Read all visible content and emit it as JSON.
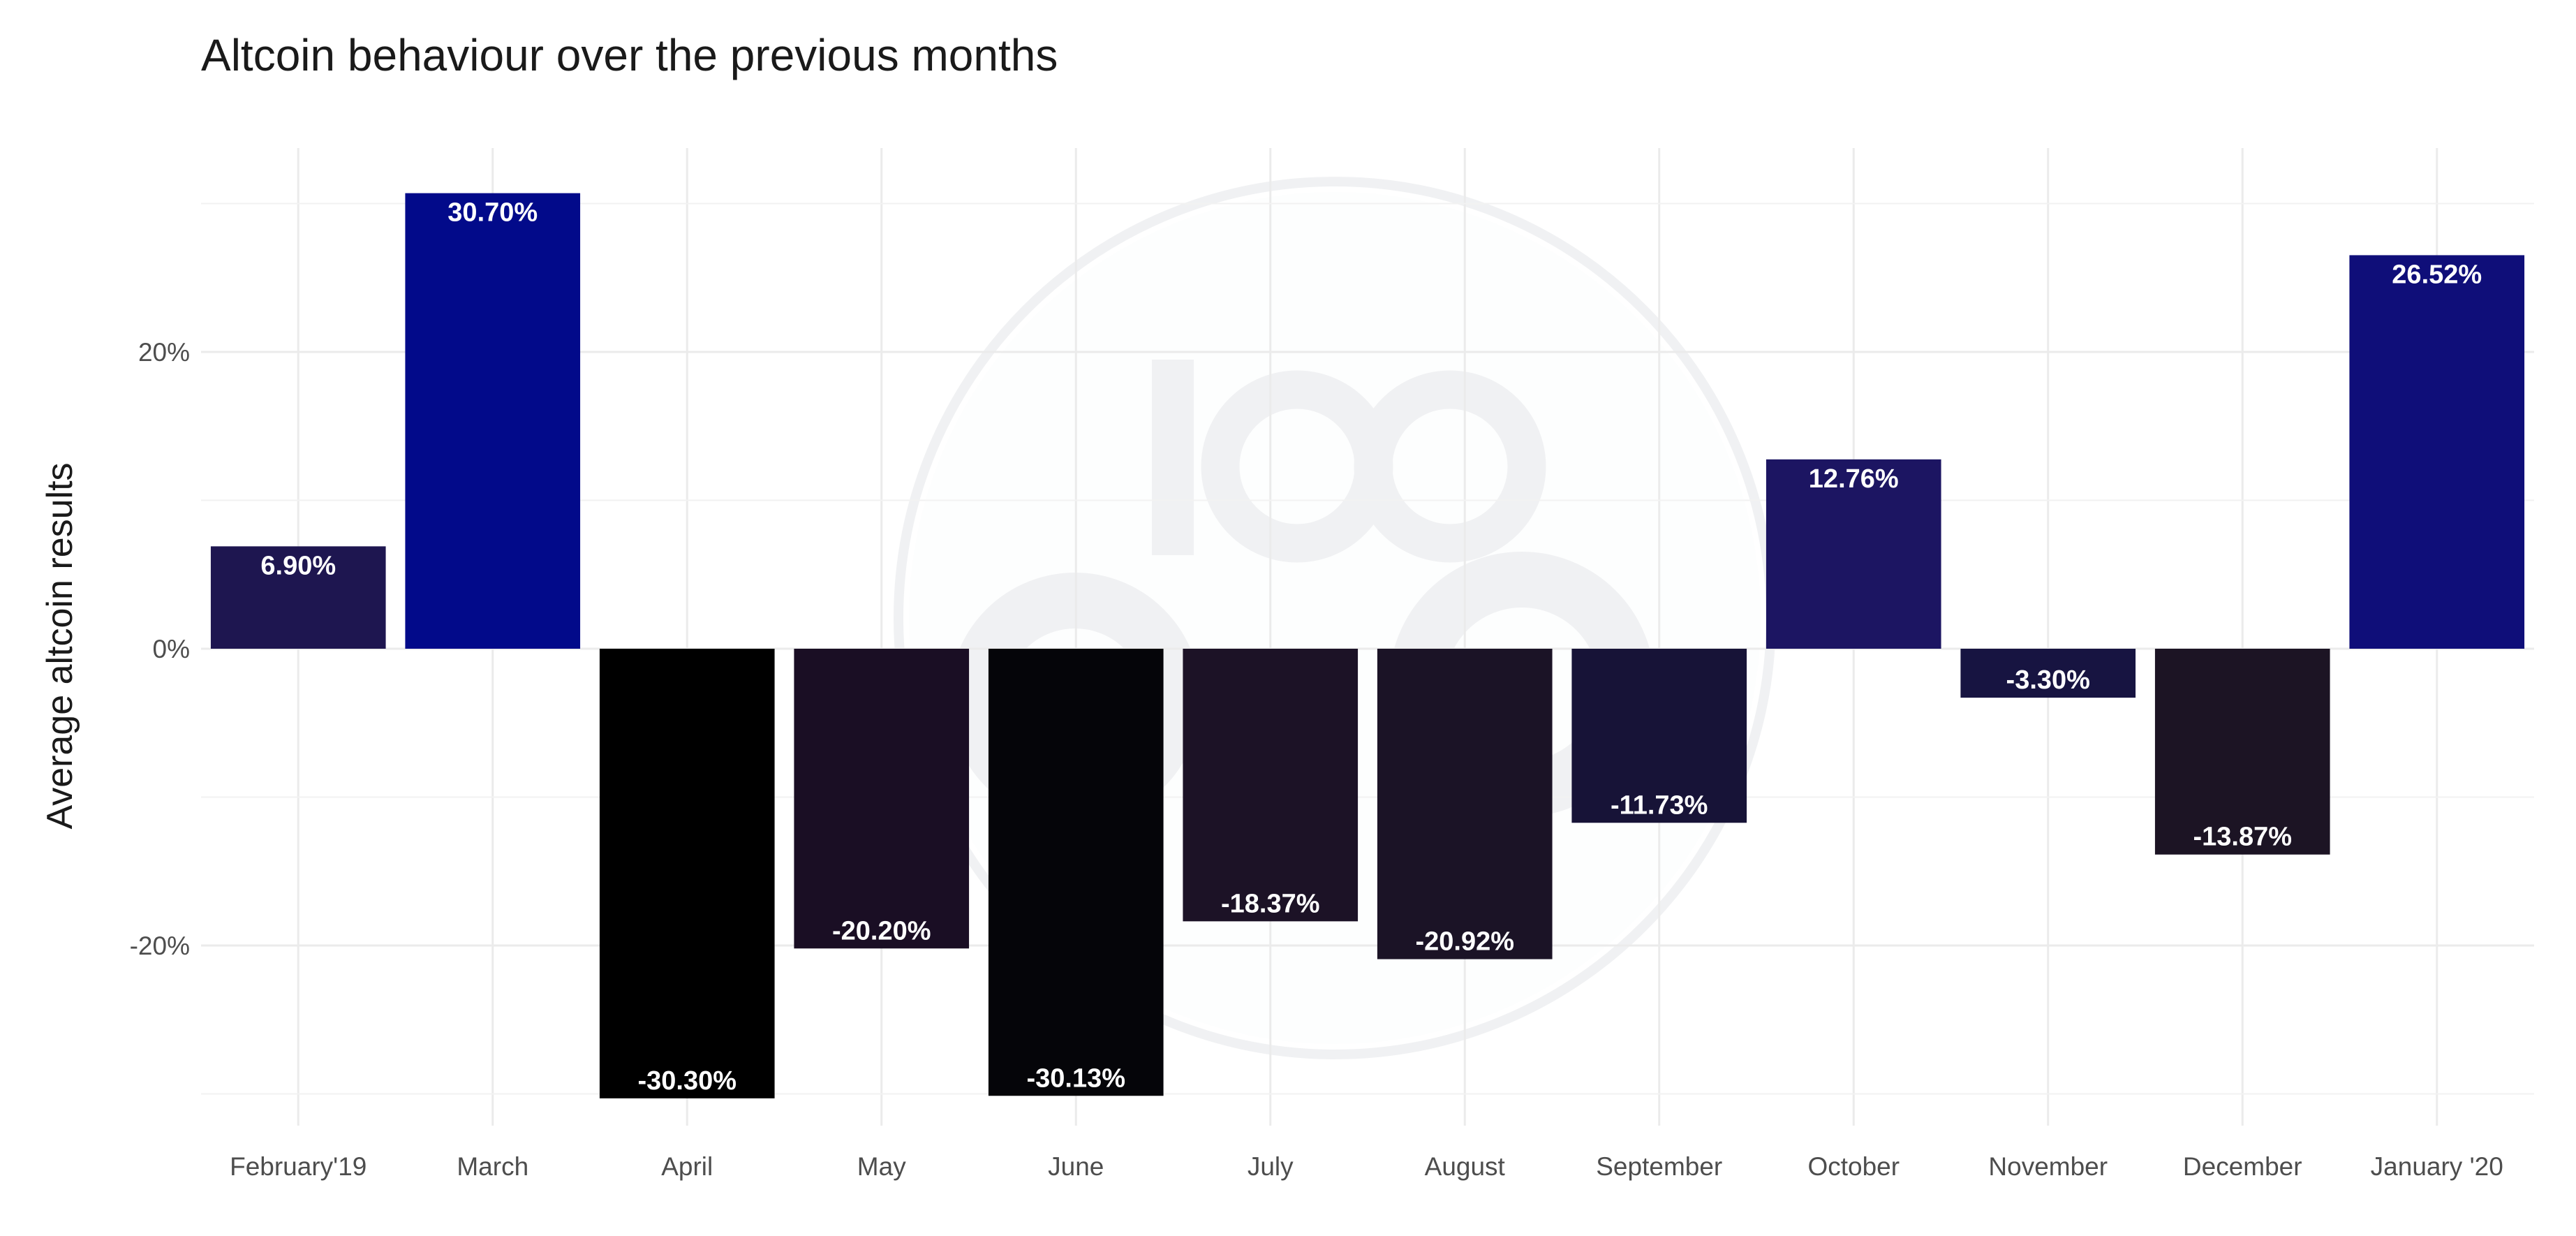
{
  "chart_data": {
    "type": "bar",
    "title": "Altcoin behaviour over the previous months",
    "xlabel": "",
    "ylabel": "Average altcoin results",
    "categories": [
      "February'19",
      "March",
      "April",
      "May",
      "June",
      "July",
      "August",
      "September",
      "October",
      "November",
      "December",
      "January '20"
    ],
    "values": [
      6.9,
      30.7,
      -30.3,
      -20.2,
      -30.13,
      -18.37,
      -20.92,
      -11.73,
      12.76,
      -3.3,
      -13.87,
      26.52
    ],
    "value_labels": [
      "6.90%",
      "30.70%",
      "-30.30%",
      "-20.20%",
      "-30.13%",
      "-18.37%",
      "-20.92%",
      "-11.73%",
      "12.76%",
      "-3.30%",
      "-13.87%",
      "26.52%"
    ],
    "bar_colors": [
      "#1e1650",
      "#020a8a",
      "#000000",
      "#1a0e24",
      "#050509",
      "#1c1226",
      "#1b1326",
      "#171337",
      "#1c1562",
      "#171441",
      "#1c1424",
      "#0f0e79"
    ],
    "yticks": [
      -20,
      0,
      20
    ],
    "ytick_labels": [
      "-20%",
      "0%",
      "20%"
    ],
    "ylim": [
      -30.6,
      30.9
    ],
    "grid": true,
    "legend": "none",
    "watermark": "100eyes"
  }
}
